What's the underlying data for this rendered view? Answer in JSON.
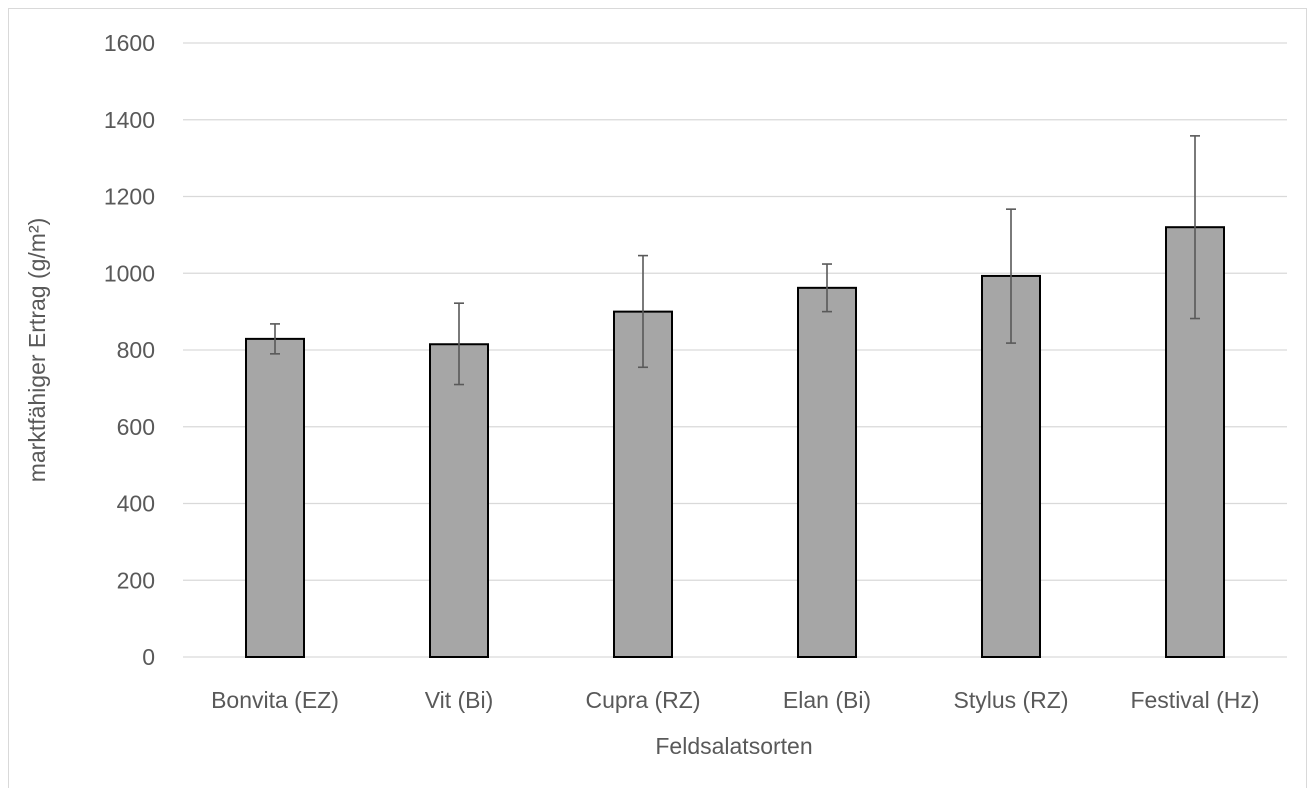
{
  "chart_data": {
    "type": "bar",
    "categories": [
      "Bonvita (EZ)",
      "Vit (Bi)",
      "Cupra (RZ)",
      "Elan (Bi)",
      "Stylus (RZ)",
      "Festival (Hz)"
    ],
    "values": [
      829,
      815,
      900,
      962,
      993,
      1120
    ],
    "error_low": [
      790,
      710,
      755,
      900,
      818,
      882
    ],
    "error_high": [
      868,
      922,
      1046,
      1024,
      1167,
      1358
    ],
    "xlabel": "Feldsalatsorten",
    "ylabel": "marktfähiger Ertrag (g/m²)",
    "ylim": [
      0,
      1600
    ],
    "yticks": [
      "0",
      "200",
      "400",
      "600",
      "800",
      "1000",
      "1200",
      "1400",
      "1600"
    ],
    "grid": true,
    "colors": {
      "bar": "#a6a6a6",
      "bar_outline": "#000000",
      "grid": "#d9d9d9",
      "error_bar": "#595959",
      "text": "#595959"
    }
  }
}
